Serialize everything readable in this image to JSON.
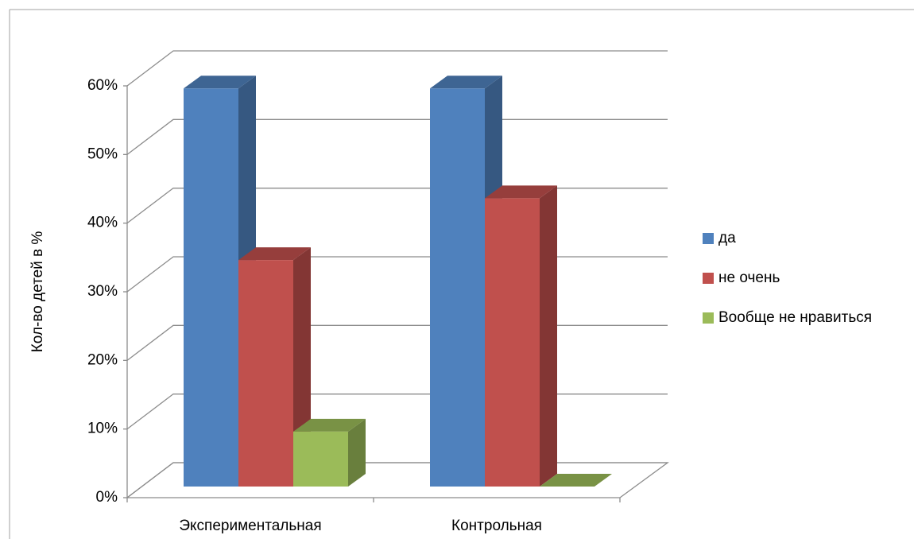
{
  "chart_data": {
    "type": "bar3d",
    "y_label": "Кол-во детей в %",
    "categories": [
      "Экспериментальная",
      "Контрольная"
    ],
    "series": [
      {
        "name": "да",
        "color": "#4f81bd",
        "values": [
          58,
          58
        ]
      },
      {
        "name": "не очень",
        "color": "#c0504d",
        "values": [
          33,
          42
        ]
      },
      {
        "name": "Вообще не нравиться",
        "color": "#9bbb59",
        "values": [
          8,
          0
        ]
      }
    ],
    "ylim": [
      0,
      60
    ],
    "yticks": [
      {
        "value": 0,
        "label": "0%"
      },
      {
        "value": 10,
        "label": "10%"
      },
      {
        "value": 20,
        "label": "20%"
      },
      {
        "value": 30,
        "label": "30%"
      },
      {
        "value": 40,
        "label": "40%"
      },
      {
        "value": 50,
        "label": "50%"
      },
      {
        "value": 60,
        "label": "60%"
      }
    ],
    "grid": true,
    "legend": "right"
  }
}
